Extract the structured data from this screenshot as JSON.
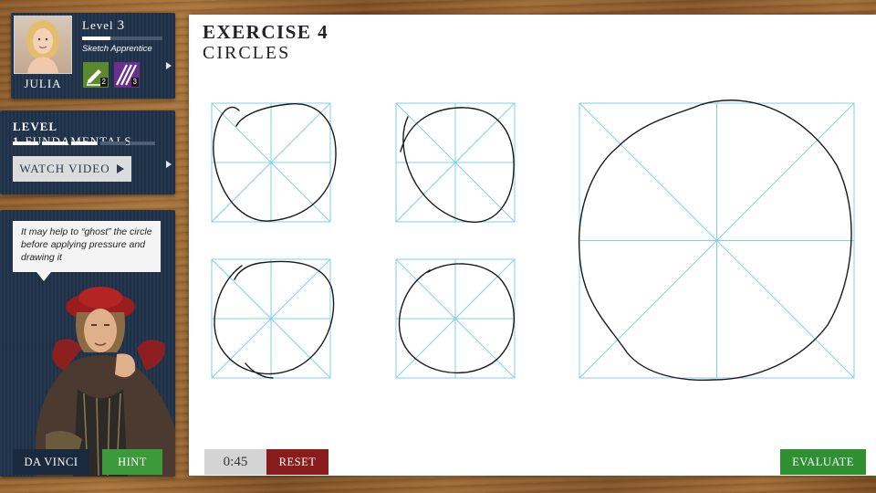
{
  "profile": {
    "name": "JULIA",
    "level_label": "Level",
    "level_number": "3",
    "level_progress": 0.35,
    "title": "Sketch Apprentice",
    "badges": [
      {
        "icon": "pen-icon",
        "count": "2",
        "color": "#5b8a2e"
      },
      {
        "icon": "hatching-icon",
        "count": "3",
        "color": "#6a2f8d"
      }
    ]
  },
  "fundamentals": {
    "level": "LEVEL 1",
    "name": "FUNDAMENTALS",
    "progress_segments_done": 3,
    "progress_segments_total": 5,
    "watch_label": "WATCH VIDEO"
  },
  "mentor": {
    "tip": "It may help to “ghost” the circle before applying pressure and drawing it",
    "name_button": "DA VINCI",
    "hint_button": "HINT"
  },
  "exercise": {
    "title": "EXERCISE 4",
    "subtitle": "CIRCLES",
    "timer": "0:45",
    "reset_label": "RESET",
    "evaluate_label": "EVALUATE"
  },
  "colors": {
    "guide_line": "#7fd0ef",
    "stroke": "#1a1a1a",
    "reset": "#8b1c1c",
    "evaluate": "#2f8f33",
    "hint": "#3c9a3a"
  }
}
